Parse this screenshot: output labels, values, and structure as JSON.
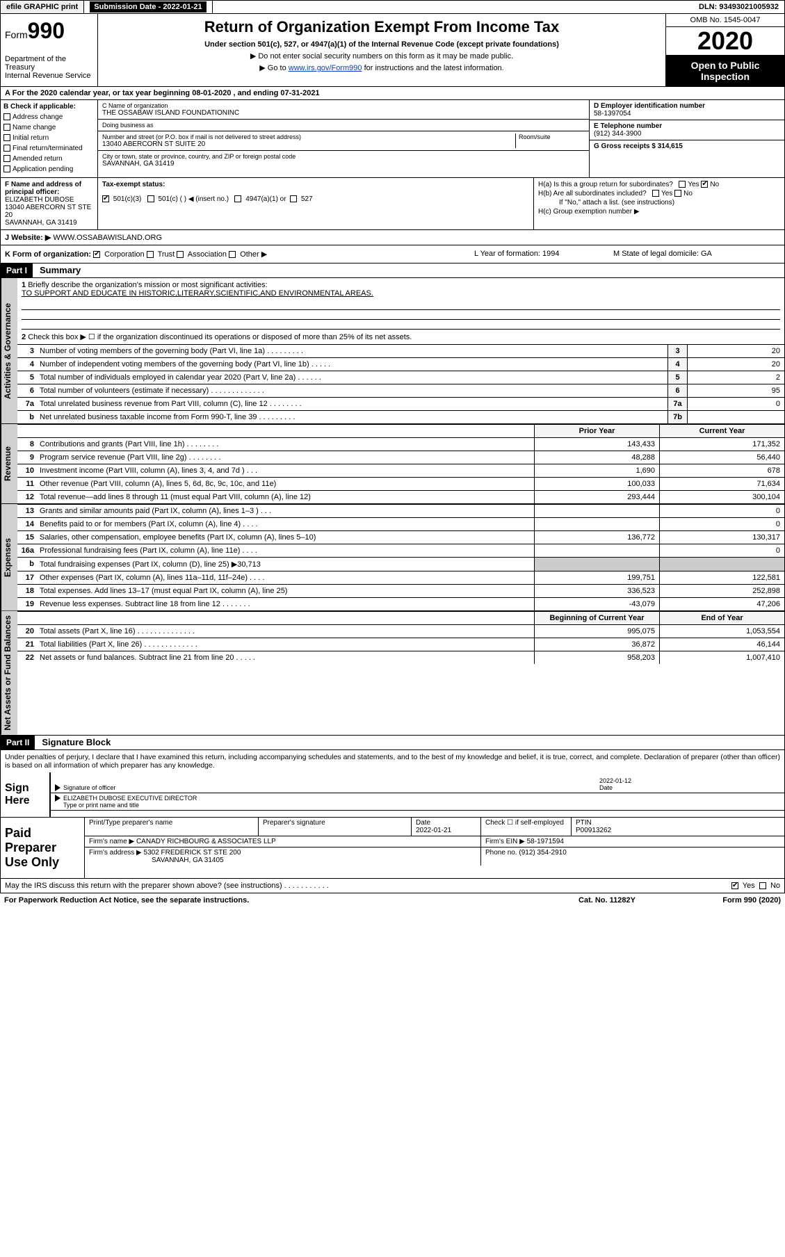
{
  "topbar": {
    "efile": "efile GRAPHIC print",
    "subdate_lbl": "Submission Date - 2022-01-21",
    "dln": "DLN: 93493021005932"
  },
  "header": {
    "form_prefix": "Form",
    "form_num": "990",
    "dept": "Department of the Treasury",
    "irs": "Internal Revenue Service",
    "title": "Return of Organization Exempt From Income Tax",
    "subtitle": "Under section 501(c), 527, or 4947(a)(1) of the Internal Revenue Code (except private foundations)",
    "line1": "▶ Do not enter social security numbers on this form as it may be made public.",
    "line2_pre": "▶ Go to ",
    "line2_link": "www.irs.gov/Form990",
    "line2_post": " for instructions and the latest information.",
    "omb": "OMB No. 1545-0047",
    "year": "2020",
    "open1": "Open to Public",
    "open2": "Inspection"
  },
  "period": "For the 2020 calendar year, or tax year beginning 08-01-2020    , and ending 07-31-2021",
  "checkcol": {
    "hdr": "B Check if applicable:",
    "opts": [
      "Address change",
      "Name change",
      "Initial return",
      "Final return/terminated",
      "Amended return",
      "Application pending"
    ]
  },
  "org": {
    "name_lbl": "C Name of organization",
    "name": "THE OSSABAW ISLAND FOUNDATIONINC",
    "dba_lbl": "Doing business as",
    "dba": "",
    "addr_lbl": "Number and street (or P.O. box if mail is not delivered to street address)",
    "room_lbl": "Room/suite",
    "addr": "13040 ABERCORN ST SUITE 20",
    "city_lbl": "City or town, state or province, country, and ZIP or foreign postal code",
    "city": "SAVANNAH, GA  31419"
  },
  "rightcol": {
    "ein_lbl": "D Employer identification number",
    "ein": "58-1397054",
    "tel_lbl": "E Telephone number",
    "tel": "(912) 344-3900",
    "gross_lbl": "G Gross receipts $ 314,615"
  },
  "officer": {
    "lbl": "F  Name and address of principal officer:",
    "name": "ELIZABETH DUBOSE",
    "addr1": "13040 ABERCORN ST STE 20",
    "addr2": "SAVANNAH, GA  31419"
  },
  "hsec": {
    "ha": "H(a)  Is this a group return for subordinates?",
    "hb": "H(b)  Are all subordinates included?",
    "hb_note": "If \"No,\" attach a list. (see instructions)",
    "hc": "H(c)  Group exemption number ▶"
  },
  "taxexempt": {
    "lbl": "Tax-exempt status:",
    "a": "501(c)(3)",
    "b": "501(c) (  ) ◀ (insert no.)",
    "c": "4947(a)(1) or",
    "d": "527"
  },
  "website": {
    "lbl": "J   Website: ▶",
    "val": "WWW.OSSABAWISLAND.ORG"
  },
  "korg": {
    "lbl": "K Form of organization:",
    "opts": [
      "Corporation",
      "Trust",
      "Association",
      "Other ▶"
    ],
    "year_lbl": "L Year of formation: 1994",
    "state_lbl": "M State of legal domicile: GA"
  },
  "part1": {
    "num": "Part I",
    "title": "Summary"
  },
  "vtab1": "Activities & Governance",
  "vtab2": "Revenue",
  "vtab3": "Expenses",
  "vtab4": "Net Assets or Fund Balances",
  "q1": {
    "n": "1",
    "t": "Briefly describe the organization's mission or most significant activities:",
    "mission": "TO SUPPORT AND EDUCATE IN HISTORIC,LITERARY,SCIENTIFIC,AND ENVIRONMENTAL AREAS."
  },
  "q2": {
    "n": "2",
    "t": "Check this box ▶ ☐  if the organization discontinued its operations or disposed of more than 25% of its net assets."
  },
  "rows_a": [
    {
      "n": "3",
      "t": "Number of voting members of the governing body (Part VI, line 1a)  .    .    .    .    .    .    .    .    .",
      "box": "3",
      "val": "20"
    },
    {
      "n": "4",
      "t": "Number of independent voting members of the governing body (Part VI, line 1b)   .    .    .    .    .",
      "box": "4",
      "val": "20"
    },
    {
      "n": "5",
      "t": "Total number of individuals employed in calendar year 2020 (Part V, line 2a)   .    .    .    .    .    .",
      "box": "5",
      "val": "2"
    },
    {
      "n": "6",
      "t": "Total number of volunteers (estimate if necessary)   .    .    .    .    .    .    .    .    .    .    .    .    .",
      "box": "6",
      "val": "95"
    },
    {
      "n": "7a",
      "t": "Total unrelated business revenue from Part VIII, column (C), line 12   .    .    .    .    .    .    .    .",
      "box": "7a",
      "val": "0"
    },
    {
      "n": "b",
      "t": "Net unrelated business taxable income from Form 990-T, line 39   .    .    .    .    .    .    .    .    .",
      "box": "7b",
      "val": ""
    }
  ],
  "hdr_prior": "Prior Year",
  "hdr_current": "Current Year",
  "rows_rev": [
    {
      "n": "8",
      "t": "Contributions and grants (Part VIII, line 1h)   .    .    .    .    .    .    .    .",
      "c1": "143,433",
      "c2": "171,352"
    },
    {
      "n": "9",
      "t": "Program service revenue (Part VIII, line 2g)   .    .    .    .    .    .    .    .",
      "c1": "48,288",
      "c2": "56,440"
    },
    {
      "n": "10",
      "t": "Investment income (Part VIII, column (A), lines 3, 4, and 7d )   .    .    .",
      "c1": "1,690",
      "c2": "678"
    },
    {
      "n": "11",
      "t": "Other revenue (Part VIII, column (A), lines 5, 6d, 8c, 9c, 10c, and 11e)",
      "c1": "100,033",
      "c2": "71,634"
    },
    {
      "n": "12",
      "t": "Total revenue—add lines 8 through 11 (must equal Part VIII, column (A), line 12)",
      "c1": "293,444",
      "c2": "300,104"
    }
  ],
  "rows_exp": [
    {
      "n": "13",
      "t": "Grants and similar amounts paid (Part IX, column (A), lines 1–3 )   .    .    .",
      "c1": "",
      "c2": "0"
    },
    {
      "n": "14",
      "t": "Benefits paid to or for members (Part IX, column (A), line 4)   .    .    .    .",
      "c1": "",
      "c2": "0"
    },
    {
      "n": "15",
      "t": "Salaries, other compensation, employee benefits (Part IX, column (A), lines 5–10)",
      "c1": "136,772",
      "c2": "130,317"
    },
    {
      "n": "16a",
      "t": "Professional fundraising fees (Part IX, column (A), line 11e)   .    .    .    .",
      "c1": "",
      "c2": "0"
    },
    {
      "n": "b",
      "t": "Total fundraising expenses (Part IX, column (D), line 25) ▶30,713",
      "c1": "GREY",
      "c2": "GREY"
    },
    {
      "n": "17",
      "t": "Other expenses (Part IX, column (A), lines 11a–11d, 11f–24e)   .    .    .    .",
      "c1": "199,751",
      "c2": "122,581"
    },
    {
      "n": "18",
      "t": "Total expenses. Add lines 13–17 (must equal Part IX, column (A), line 25)",
      "c1": "336,523",
      "c2": "252,898"
    },
    {
      "n": "19",
      "t": "Revenue less expenses. Subtract line 18 from line 12   .    .    .    .    .    .    .",
      "c1": "-43,079",
      "c2": "47,206"
    }
  ],
  "hdr_beg": "Beginning of Current Year",
  "hdr_end": "End of Year",
  "rows_net": [
    {
      "n": "20",
      "t": "Total assets (Part X, line 16)   .    .    .    .    .    .    .    .    .    .    .    .    .    .",
      "c1": "995,075",
      "c2": "1,053,554"
    },
    {
      "n": "21",
      "t": "Total liabilities (Part X, line 26)   .    .    .    .    .    .    .    .    .    .    .    .    .",
      "c1": "36,872",
      "c2": "46,144"
    },
    {
      "n": "22",
      "t": "Net assets or fund balances. Subtract line 21 from line 20   .    .    .    .    .",
      "c1": "958,203",
      "c2": "1,007,410"
    }
  ],
  "part2": {
    "num": "Part II",
    "title": "Signature Block"
  },
  "perjury": "Under penalties of perjury, I declare that I have examined this return, including accompanying schedules and statements, and to the best of my knowledge and belief, it is true, correct, and complete. Declaration of preparer (other than officer) is based on all information of which preparer has any knowledge.",
  "sign": {
    "lbl": "Sign Here",
    "sig_lbl": "Signature of officer",
    "date_lbl": "Date",
    "date": "2022-01-12",
    "name": "ELIZABETH DUBOSE  EXECUTIVE DIRECTOR",
    "name_lbl": "Type or print name and title"
  },
  "prep": {
    "lbl": "Paid Preparer Use Only",
    "h1": "Print/Type preparer's name",
    "h2": "Preparer's signature",
    "h3": "Date",
    "h3v": "2022-01-21",
    "h4": "Check ☐ if self-employed",
    "h5": "PTIN",
    "h5v": "P00913262",
    "firm_lbl": "Firm's name     ▶",
    "firm": "CANADY RICHBOURG & ASSOCIATES LLP",
    "ein_lbl": "Firm's EIN ▶",
    "ein": "58-1971594",
    "addr_lbl": "Firm's address ▶",
    "addr1": "5302 FREDERICK ST STE 200",
    "addr2": "SAVANNAH, GA  31405",
    "phone_lbl": "Phone no.",
    "phone": "(912) 354-2910"
  },
  "footer": {
    "discuss": "May the IRS discuss this return with the preparer shown above? (see instructions)   .    .    .    .    .    .    .    .    .    .    .",
    "yes": "Yes",
    "no": "No",
    "pra": "For Paperwork Reduction Act Notice, see the separate instructions.",
    "cat": "Cat. No. 11282Y",
    "form": "Form 990 (2020)"
  }
}
